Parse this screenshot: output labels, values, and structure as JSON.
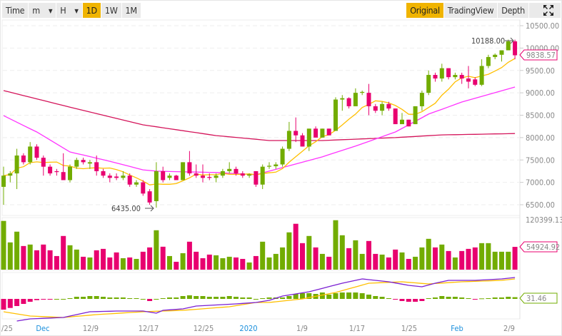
{
  "toolbar": {
    "left": [
      {
        "label": "Time"
      },
      {
        "label": "m",
        "dropdown": true
      },
      {
        "label": "H",
        "dropdown": true
      },
      {
        "label": "1D",
        "active": true
      },
      {
        "label": "1W"
      },
      {
        "label": "1M"
      }
    ],
    "right": [
      {
        "label": "Original",
        "active": true
      },
      {
        "label": "TradingView"
      },
      {
        "label": "Depth"
      }
    ],
    "expand_icon": "expand-icon"
  },
  "colors": {
    "up": "#72ac00",
    "down": "#e8006f",
    "ma7": "#ffbf00",
    "ma30": "#ff33ff",
    "ma_long": "#d4145a",
    "dif": "#7a1fd2",
    "dea": "#ffbf00",
    "accent": "#f0b400"
  },
  "price_axis": [
    "10500.00",
    "10000.00",
    "9500.00",
    "9000.00",
    "8500.00",
    "8000.00",
    "7500.00",
    "7000.00",
    "6500.00"
  ],
  "annotations": {
    "high": "10188.00",
    "low": "6435.00",
    "last_price": "9838.57",
    "volume_max": "120399.13",
    "last_volume": "54924.92",
    "last_macd": "31.46"
  },
  "date_axis": [
    {
      "label": "/25",
      "blue": false
    },
    {
      "label": "Dec",
      "blue": true
    },
    {
      "label": "12/9",
      "blue": false
    },
    {
      "label": "12/17",
      "blue": false
    },
    {
      "label": "12/25",
      "blue": false
    },
    {
      "label": "2020",
      "blue": true
    },
    {
      "label": "1/9",
      "blue": false
    },
    {
      "label": "1/17",
      "blue": false
    },
    {
      "label": "1/25",
      "blue": false
    },
    {
      "label": "Feb",
      "blue": true
    },
    {
      "label": "2/9",
      "blue": false
    }
  ],
  "chart_data": {
    "type": "candlestick",
    "ylim": [
      6400,
      10600
    ],
    "volume_max": 120399.13,
    "ohlc": [
      [
        6900,
        7350,
        6500,
        7150
      ],
      [
        7150,
        7250,
        7000,
        7200
      ],
      [
        7200,
        7750,
        6850,
        7600
      ],
      [
        7600,
        7650,
        7400,
        7450
      ],
      [
        7450,
        7900,
        7400,
        7800
      ],
      [
        7800,
        7850,
        7500,
        7550
      ],
      [
        7550,
        7600,
        7150,
        7350
      ],
      [
        7350,
        7400,
        7150,
        7200
      ],
      [
        7250,
        7300,
        7150,
        7230
      ],
      [
        7230,
        7650,
        7050,
        7050
      ],
      [
        7050,
        7400,
        7000,
        7350
      ],
      [
        7350,
        7550,
        7300,
        7500
      ],
      [
        7500,
        7550,
        7400,
        7450
      ],
      [
        7420,
        7500,
        7300,
        7450
      ],
      [
        7450,
        7600,
        7150,
        7250
      ],
      [
        7250,
        7300,
        7100,
        7150
      ],
      [
        7150,
        7200,
        7000,
        7100
      ],
      [
        7130,
        7200,
        7050,
        7100
      ],
      [
        7100,
        7250,
        7050,
        7150
      ],
      [
        7150,
        7200,
        6900,
        6950
      ],
      [
        6950,
        7050,
        6900,
        7000
      ],
      [
        7000,
        7050,
        6700,
        6750
      ],
      [
        6800,
        6850,
        6500,
        6550
      ],
      [
        6580,
        7450,
        6435,
        7250
      ],
      [
        7250,
        7350,
        7000,
        7050
      ],
      [
        7100,
        7200,
        7050,
        7150
      ],
      [
        7150,
        7170,
        7050,
        7050
      ],
      [
        7050,
        7450,
        7050,
        7450
      ],
      [
        7450,
        7700,
        7150,
        7200
      ],
      [
        7200,
        7400,
        7100,
        7150
      ],
      [
        7150,
        7400,
        7000,
        7100
      ],
      [
        7120,
        7200,
        7050,
        7100
      ],
      [
        7100,
        7200,
        7000,
        7150
      ],
      [
        7150,
        7300,
        7100,
        7250
      ],
      [
        7250,
        7450,
        7200,
        7300
      ],
      [
        7300,
        7350,
        7150,
        7200
      ],
      [
        7200,
        7250,
        7100,
        7150
      ],
      [
        7150,
        7200,
        7100,
        7180
      ],
      [
        7250,
        7250,
        6900,
        6950
      ],
      [
        6950,
        7400,
        6850,
        7350
      ],
      [
        7350,
        7450,
        7300,
        7370
      ],
      [
        7360,
        7450,
        7300,
        7400
      ],
      [
        7400,
        7800,
        7350,
        7750
      ],
      [
        7750,
        8350,
        7700,
        8150
      ],
      [
        8150,
        8450,
        7900,
        8050
      ],
      [
        8050,
        8100,
        7800,
        7800
      ],
      [
        7800,
        8200,
        7700,
        8200
      ],
      [
        8200,
        8250,
        8000,
        8000
      ],
      [
        8000,
        8200,
        8000,
        8200
      ],
      [
        8200,
        8200,
        8050,
        8050
      ],
      [
        8150,
        8900,
        8150,
        8850
      ],
      [
        8850,
        8950,
        8600,
        8880
      ],
      [
        8880,
        8900,
        8650,
        8700
      ],
      [
        8700,
        9100,
        8700,
        9000
      ],
      [
        9000,
        9050,
        8950,
        9020
      ],
      [
        9000,
        9200,
        8500,
        8700
      ],
      [
        8700,
        8750,
        8550,
        8600
      ],
      [
        8600,
        8800,
        8500,
        8750
      ],
      [
        8750,
        8800,
        8600,
        8650
      ],
      [
        8650,
        8650,
        8300,
        8300
      ],
      [
        8300,
        8550,
        8300,
        8400
      ],
      [
        8400,
        8400,
        8250,
        8250
      ],
      [
        8300,
        8700,
        8300,
        8700
      ],
      [
        8700,
        9050,
        8600,
        9000
      ],
      [
        9000,
        9500,
        8950,
        9400
      ],
      [
        9400,
        9450,
        9250,
        9320
      ],
      [
        9320,
        9650,
        9250,
        9550
      ],
      [
        9550,
        9550,
        9300,
        9350
      ],
      [
        9350,
        9450,
        9300,
        9400
      ],
      [
        9400,
        9450,
        9200,
        9320
      ],
      [
        9320,
        9600,
        9100,
        9250
      ],
      [
        9300,
        9350,
        9150,
        9180
      ],
      [
        9180,
        9750,
        9150,
        9600
      ],
      [
        9600,
        9850,
        9550,
        9800
      ],
      [
        9800,
        9880,
        9750,
        9850
      ],
      [
        9850,
        9950,
        9700,
        9950
      ],
      [
        9950,
        10188,
        9950,
        10150
      ],
      [
        10150,
        10188,
        9750,
        9838.57
      ]
    ],
    "volume": [
      117500,
      65700,
      91600,
      57000,
      60500,
      46700,
      60500,
      46700,
      32800,
      81200,
      58800,
      48400,
      31100,
      29400,
      46700,
      50100,
      29400,
      41500,
      27600,
      29400,
      25900,
      43200,
      53600,
      95000,
      55300,
      32800,
      19000,
      39700,
      67400,
      43200,
      27600,
      36300,
      34600,
      27600,
      31100,
      29400,
      25900,
      17300,
      32800,
      67400,
      29400,
      38000,
      53600,
      89900,
      110600,
      63900,
      81200,
      53600,
      38000,
      31100,
      119200,
      82900,
      51800,
      70800,
      38000,
      69100,
      38000,
      36300,
      29400,
      48400,
      41500,
      25900,
      31100,
      53600,
      74300,
      53600,
      60500,
      44900,
      29400,
      44900,
      50100,
      53600,
      63900,
      63900,
      43200,
      43200,
      43200,
      54924.92
    ],
    "ma30_points": [
      [
        0,
        8490
      ],
      [
        5,
        8125
      ],
      [
        10,
        7680
      ],
      [
        16,
        7470
      ],
      [
        21,
        7280
      ],
      [
        23,
        7250
      ],
      [
        32,
        7220
      ],
      [
        38,
        7170
      ],
      [
        42,
        7330
      ],
      [
        48,
        7570
      ],
      [
        53,
        7810
      ],
      [
        59,
        8125
      ],
      [
        64,
        8525
      ],
      [
        69,
        8795
      ],
      [
        77,
        9130
      ]
    ],
    "ma_long_points": [
      [
        0,
        9050
      ],
      [
        10,
        8680
      ],
      [
        21,
        8285
      ],
      [
        32,
        8045
      ],
      [
        40,
        7935
      ],
      [
        48,
        7935
      ],
      [
        59,
        8000
      ],
      [
        66,
        8060
      ],
      [
        77,
        8090
      ]
    ],
    "macd_hist": [
      -195,
      -165,
      -130,
      -91,
      -52,
      -22,
      -9,
      -4,
      0,
      0,
      13,
      39,
      39,
      52,
      52,
      39,
      26,
      26,
      26,
      13,
      13,
      0,
      -39,
      0,
      13,
      26,
      26,
      52,
      65,
      52,
      52,
      39,
      39,
      39,
      52,
      39,
      26,
      26,
      0,
      13,
      26,
      26,
      26,
      52,
      91,
      104,
      104,
      91,
      117,
      78,
      104,
      117,
      117,
      117,
      104,
      78,
      52,
      39,
      13,
      -13,
      -39,
      -52,
      -52,
      -39,
      13,
      26,
      52,
      39,
      39,
      26,
      13,
      -2,
      9,
      13,
      26,
      26,
      39,
      31.46
    ],
    "dif_points": [
      [
        2,
        -403
      ],
      [
        4,
        -364
      ],
      [
        9,
        -338
      ],
      [
        13,
        -234
      ],
      [
        17,
        -221
      ],
      [
        21,
        -221
      ],
      [
        23,
        -260
      ],
      [
        24,
        -208
      ],
      [
        27,
        -182
      ],
      [
        29,
        -130
      ],
      [
        35,
        -91
      ],
      [
        38,
        -65
      ],
      [
        40,
        -26
      ],
      [
        42,
        52
      ],
      [
        46,
        130
      ],
      [
        51,
        286
      ],
      [
        54,
        364
      ],
      [
        58,
        312
      ],
      [
        61,
        247
      ],
      [
        63,
        221
      ],
      [
        65,
        286
      ],
      [
        67,
        338
      ],
      [
        71,
        338
      ],
      [
        75,
        364
      ],
      [
        77,
        390
      ]
    ],
    "dea_points": [
      [
        0,
        -234
      ],
      [
        4,
        -312
      ],
      [
        9,
        -338
      ],
      [
        14,
        -286
      ],
      [
        21,
        -234
      ],
      [
        27,
        -208
      ],
      [
        34,
        -143
      ],
      [
        38,
        -65
      ],
      [
        40,
        -65
      ],
      [
        45,
        0
      ],
      [
        50,
        117
      ],
      [
        55,
        286
      ],
      [
        60,
        312
      ],
      [
        64,
        273
      ],
      [
        69,
        312
      ],
      [
        75,
        338
      ],
      [
        77,
        364
      ]
    ]
  }
}
